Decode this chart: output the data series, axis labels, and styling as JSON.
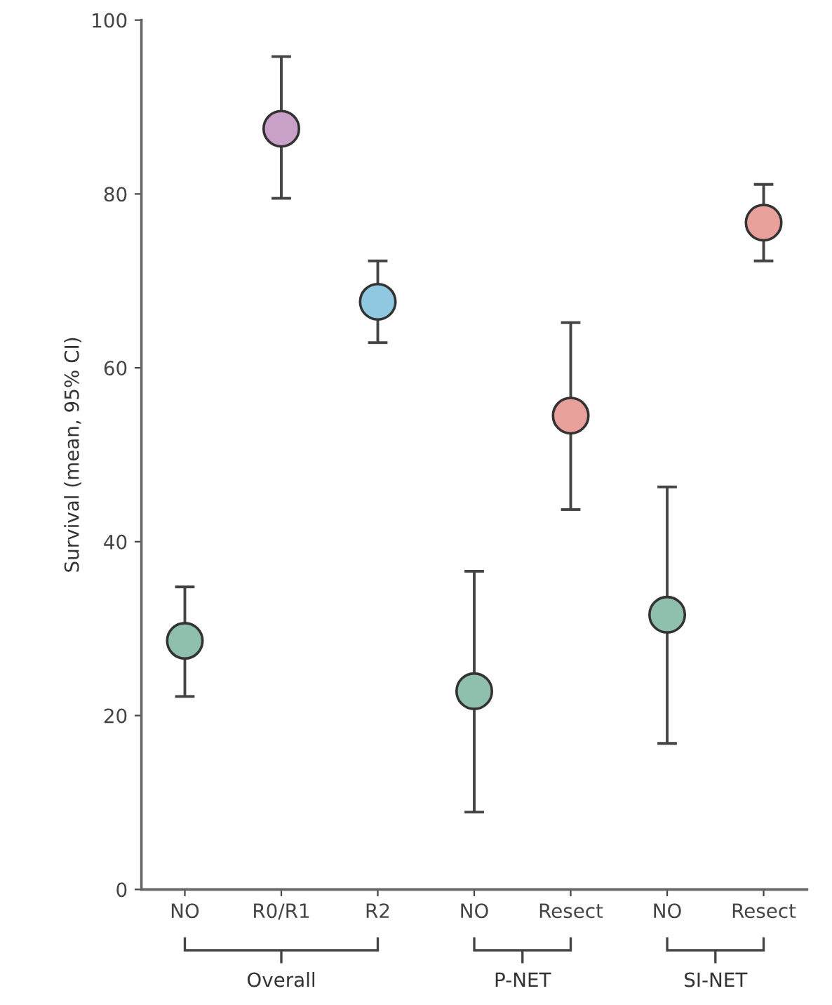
{
  "chart_data": {
    "type": "scatter",
    "ylabel": "Survival (mean, 95% CI)",
    "categories": [
      "NO",
      "R0/R1",
      "R2",
      "NO",
      "Resect",
      "NO",
      "Resect"
    ],
    "values": [
      28.6,
      87.5,
      67.6,
      22.8,
      54.5,
      31.6,
      76.7
    ],
    "errors": [
      [
        22.2,
        34.8
      ],
      [
        79.5,
        95.8
      ],
      [
        62.9,
        72.3
      ],
      [
        8.9,
        36.6
      ],
      [
        43.7,
        65.2
      ],
      [
        16.8,
        46.3
      ],
      [
        72.3,
        81.1
      ]
    ],
    "colors": [
      "#8fc0ad",
      "#c9a0c8",
      "#8fc8e0",
      "#8fc0ad",
      "#e8a09a",
      "#8fc0ad",
      "#e8a09a"
    ],
    "ylim": [
      0,
      100
    ],
    "yticks": [
      0,
      20,
      40,
      60,
      80,
      100
    ],
    "grid": false,
    "marker": "circle",
    "annotations": [
      "Overall",
      "P-NET",
      "SI-NET"
    ]
  }
}
